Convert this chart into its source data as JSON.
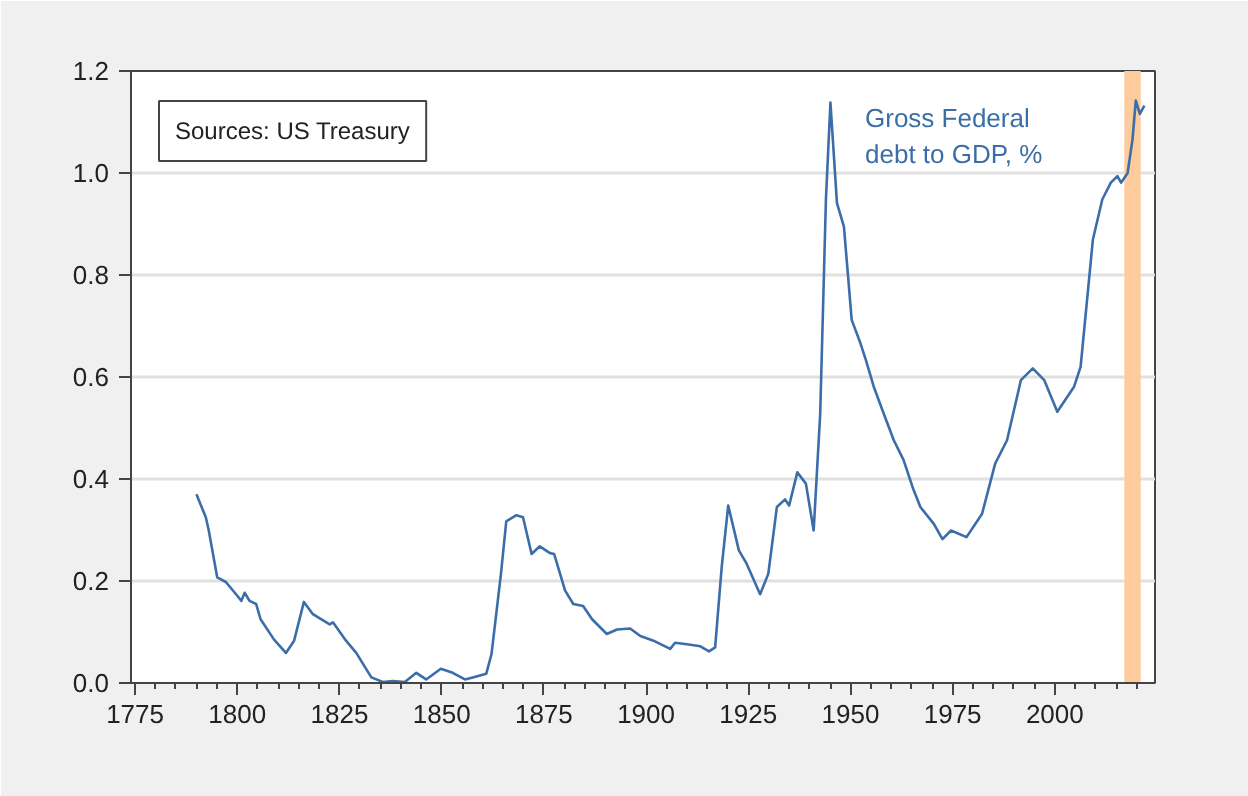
{
  "chart_data": {
    "type": "line",
    "annotations": [
      "Sources: US Treasury"
    ],
    "x": [
      1790,
      1792.3,
      1793,
      1795.1,
      1797.2,
      1799.7,
      1801,
      1801.8,
      1803,
      1804.6,
      1805.7,
      1809,
      1811.9,
      1813.9,
      1816.3,
      1818.5,
      1822.6,
      1823.4,
      1826.6,
      1829.1,
      1832.8,
      1835.6,
      1838,
      1841,
      1843.8,
      1846.2,
      1849.8,
      1852.7,
      1855.7,
      1857.6,
      1860.9,
      1862.2,
      1864.5,
      1865.8,
      1868.3,
      1869.9,
      1872,
      1874,
      1876.4,
      1877.5,
      1880.2,
      1882.2,
      1884.6,
      1886.8,
      1890.4,
      1892.9,
      1896.1,
      1898.6,
      1901.8,
      1905.9,
      1907.1,
      1910,
      1913.3,
      1915.4,
      1916.9,
      1918.5,
      1920.1,
      1922.7,
      1924.6,
      1927.9,
      1929.9,
      1932,
      1934,
      1935,
      1937,
      1939.1,
      1941,
      1942.6,
      1944,
      1945.1,
      1946.7,
      1948.4,
      1950.3,
      1952.4,
      1953.7,
      1955.7,
      1958.1,
      1960.6,
      1963,
      1965.2,
      1967.1,
      1970.4,
      1972.5,
      1974.6,
      1978.4,
      1982.2,
      1985.4,
      1988.3,
      1991.7,
      1994.6,
      1997.4,
      2000.6,
      2004.7,
      2006.3,
      2009.3,
      2011.6,
      2013.7,
      2015.3,
      2016.2,
      2017.8,
      2019,
      2019.8,
      2020.8,
      2021.9
    ],
    "series": [
      {
        "name": "Gross Federal\ndebt to GDP, %",
        "color": "#3b6ea8",
        "values": [
          0.37,
          0.325,
          0.3,
          0.207,
          0.198,
          0.174,
          0.161,
          0.177,
          0.161,
          0.155,
          0.125,
          0.085,
          0.059,
          0.083,
          0.159,
          0.135,
          0.115,
          0.119,
          0.083,
          0.059,
          0.011,
          0.002,
          0.004,
          0.002,
          0.02,
          0.007,
          0.028,
          0.02,
          0.007,
          0.011,
          0.018,
          0.057,
          0.214,
          0.317,
          0.329,
          0.325,
          0.253,
          0.268,
          0.255,
          0.253,
          0.181,
          0.155,
          0.151,
          0.125,
          0.096,
          0.105,
          0.107,
          0.092,
          0.083,
          0.067,
          0.079,
          0.076,
          0.072,
          0.062,
          0.07,
          0.227,
          0.348,
          0.26,
          0.234,
          0.174,
          0.214,
          0.345,
          0.36,
          0.348,
          0.413,
          0.391,
          0.299,
          0.528,
          0.948,
          1.138,
          0.941,
          0.895,
          0.712,
          0.667,
          0.635,
          0.581,
          0.529,
          0.476,
          0.437,
          0.384,
          0.345,
          0.312,
          0.282,
          0.299,
          0.286,
          0.332,
          0.43,
          0.476,
          0.594,
          0.617,
          0.594,
          0.532,
          0.581,
          0.62,
          0.869,
          0.948,
          0.981,
          0.994,
          0.981,
          1.0,
          1.066,
          1.142,
          1.116,
          1.132
        ]
      }
    ],
    "bands": [
      {
        "axis": "x",
        "from": 2017,
        "to": 2021,
        "color": "#fdcb9c"
      }
    ],
    "xlim": [
      1774,
      2024.5
    ],
    "xticks": [
      1775,
      1800,
      1825,
      1850,
      1875,
      1900,
      1925,
      1950,
      1975,
      2000
    ],
    "ylim": [
      0,
      1.2
    ],
    "yticks": [
      {
        "value": 0,
        "label": "0.0"
      },
      {
        "value": 0.2,
        "label": "0.2"
      },
      {
        "value": 0.4,
        "label": "0.4"
      },
      {
        "value": 0.6,
        "label": "0.6"
      },
      {
        "value": 0.8,
        "label": "0.8"
      },
      {
        "value": 1.0,
        "label": "1.0"
      },
      {
        "value": 1.2,
        "label": "1.2"
      }
    ],
    "grid": "y",
    "legend": false,
    "marker": "none",
    "line_style": "solid"
  }
}
